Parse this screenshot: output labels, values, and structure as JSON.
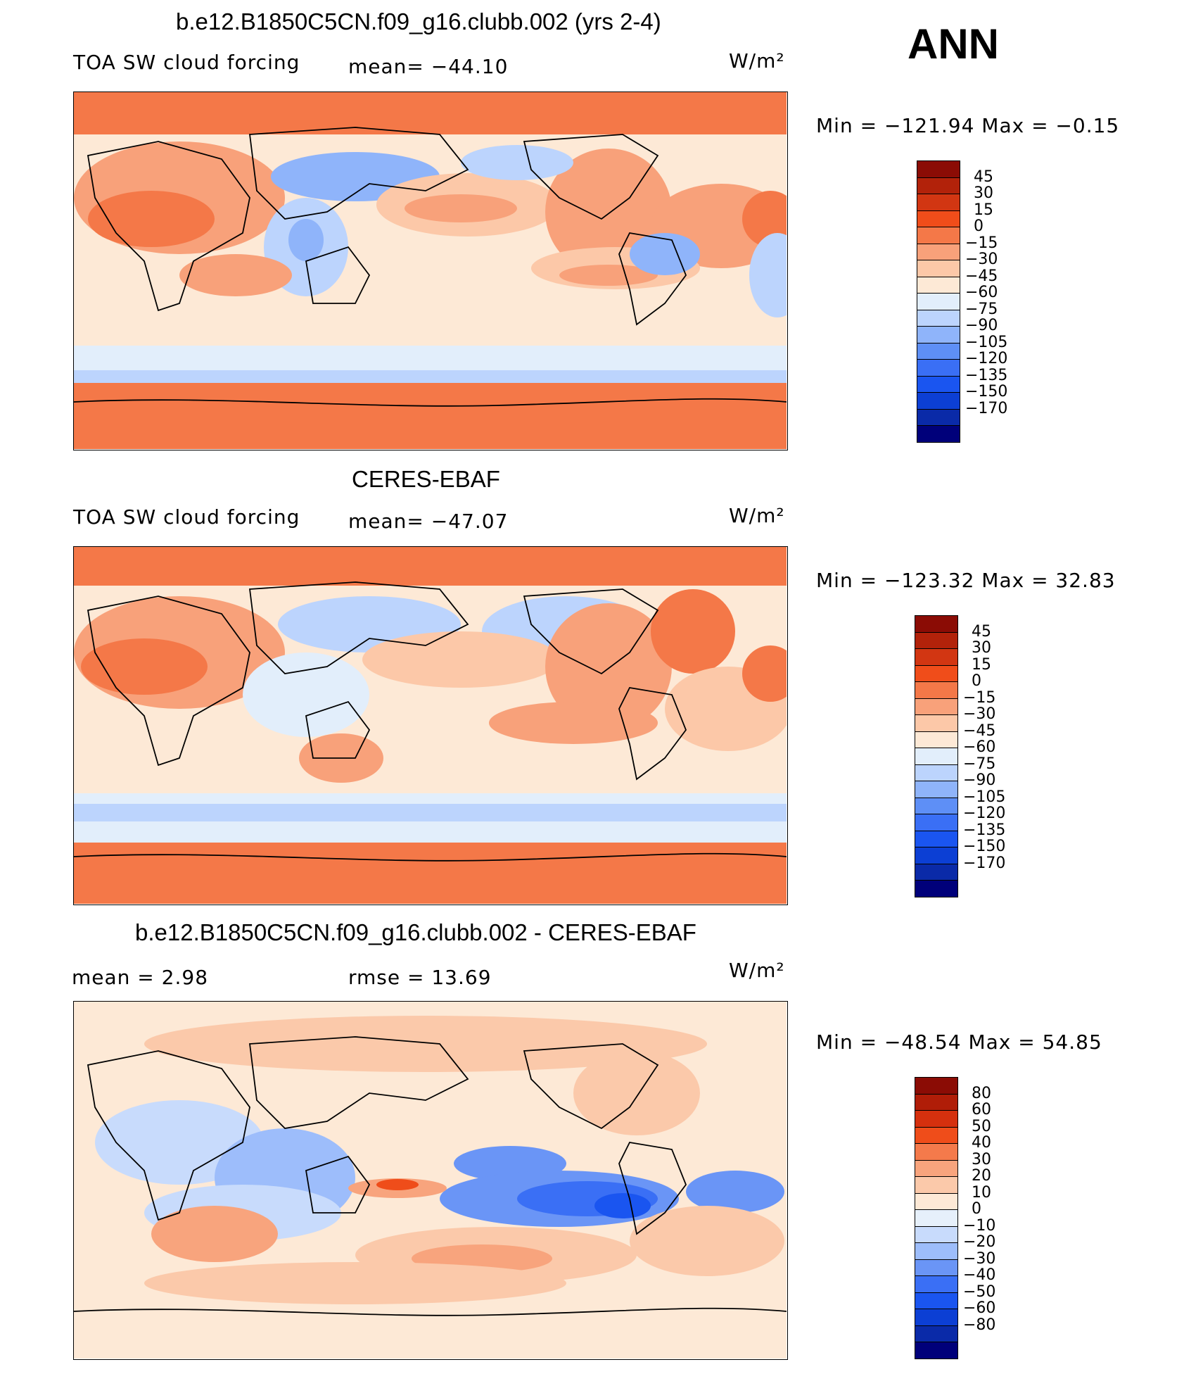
{
  "season": "ANN",
  "colors": {
    "std_levels": [
      "#00007a",
      "#0a2aa8",
      "#0c3fd4",
      "#1a55f0",
      "#3a6ff5",
      "#5e8ff6",
      "#8fb4fa",
      "#bcd4fd",
      "#e2eefb",
      "#fde9d6",
      "#fcc8a8",
      "#f8a17a",
      "#f47848",
      "#f04d1a",
      "#d23612",
      "#b2220a",
      "#8b0c05"
    ],
    "diff_levels": [
      "#00007a",
      "#0a2aa8",
      "#0c3fd4",
      "#1a55f0",
      "#3a6ff5",
      "#6a95f6",
      "#9dbdfb",
      "#c8dbfc",
      "#e6f0fb",
      "#fde9d6",
      "#fbc9aa",
      "#f8a47d",
      "#f47a4b",
      "#ef4d1a",
      "#d5300e",
      "#b01d08",
      "#8b0c05"
    ]
  },
  "panels": [
    {
      "title": "b.e12.B1850C5CN.f09_g16.clubb.002 (yrs 2-4)",
      "variable": "TOA SW cloud forcing",
      "mean_text": "mean= −44.10",
      "units": "W/m²",
      "min_max": "Min  =  −121.94  Max  =    −0.15",
      "colorbar_ticks": [
        "45",
        "30",
        "15",
        "0",
        "−15",
        "−30",
        "−45",
        "−60",
        "−75",
        "−90",
        "−105",
        "−120",
        "−135",
        "−150",
        "−170"
      ]
    },
    {
      "title": "CERES-EBAF",
      "variable": "TOA SW cloud forcing",
      "mean_text": "mean= −47.07",
      "units": "W/m²",
      "min_max": "Min  =  −123.32  Max  =    32.83",
      "colorbar_ticks": [
        "45",
        "30",
        "15",
        "0",
        "−15",
        "−30",
        "−45",
        "−60",
        "−75",
        "−90",
        "−105",
        "−120",
        "−135",
        "−150",
        "−170"
      ]
    },
    {
      "title": "b.e12.B1850C5CN.f09_g16.clubb.002 - CERES-EBAF",
      "mean_text": "mean  =      2.98",
      "rmse_text": "rmse  =     13.69",
      "units": "W/m²",
      "min_max": "Min  =  −48.54  Max  =    54.85",
      "colorbar_ticks": [
        "80",
        "60",
        "50",
        "40",
        "30",
        "20",
        "10",
        "0",
        "−10",
        "−20",
        "−30",
        "−40",
        "−50",
        "−60",
        "−80"
      ]
    }
  ],
  "chart_data": [
    {
      "type": "heatmap",
      "title": "b.e12.B1850C5CN.f09_g16.clubb.002 (yrs 2-4)",
      "variable": "TOA SW cloud forcing",
      "units": "W/m2",
      "mean": -44.1,
      "min": -121.94,
      "max": -0.15,
      "contour_levels": [
        -170,
        -150,
        -135,
        -120,
        -105,
        -90,
        -75,
        -60,
        -45,
        -30,
        -15,
        0,
        15,
        30,
        45
      ]
    },
    {
      "type": "heatmap",
      "title": "CERES-EBAF",
      "variable": "TOA SW cloud forcing",
      "units": "W/m2",
      "mean": -47.07,
      "min": -123.32,
      "max": 32.83,
      "contour_levels": [
        -170,
        -150,
        -135,
        -120,
        -105,
        -90,
        -75,
        -60,
        -45,
        -30,
        -15,
        0,
        15,
        30,
        45
      ]
    },
    {
      "type": "heatmap",
      "title": "b.e12.B1850C5CN.f09_g16.clubb.002 - CERES-EBAF",
      "units": "W/m2",
      "mean": 2.98,
      "rmse": 13.69,
      "min": -48.54,
      "max": 54.85,
      "contour_levels": [
        -80,
        -60,
        -50,
        -40,
        -30,
        -20,
        -10,
        0,
        10,
        20,
        30,
        40,
        50,
        60,
        80
      ]
    }
  ]
}
